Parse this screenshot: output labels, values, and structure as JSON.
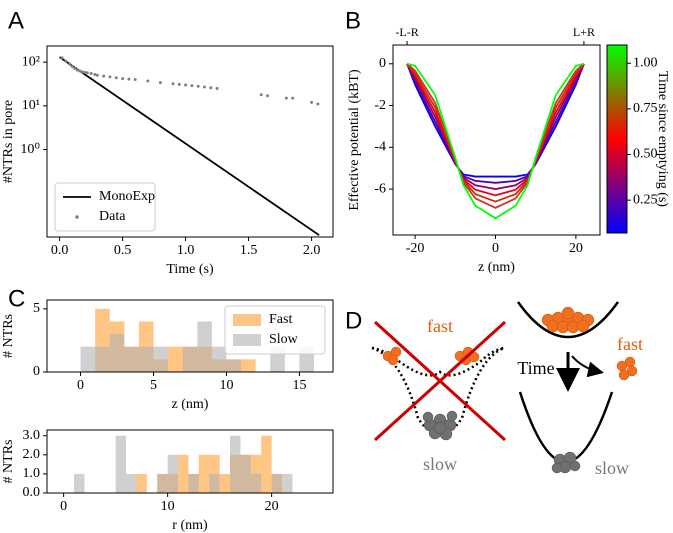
{
  "chart_data": [
    {
      "panel": "A",
      "type": "line",
      "xlabel": "Time (s)",
      "ylabel": "#NTRs in pore",
      "ylog": true,
      "xlim": [
        -0.1,
        2.17
      ],
      "ylim": [
        0.01,
        234
      ],
      "xticks": [
        {
          "value": 0,
          "label": "0.0"
        },
        {
          "value": 0.5,
          "label": "0.5"
        },
        {
          "value": 1,
          "label": "1.0"
        },
        {
          "value": 1.5,
          "label": "1.5"
        },
        {
          "value": 2,
          "label": "2.0"
        }
      ],
      "yticks": [
        {
          "value": 1,
          "label": "10⁰"
        },
        {
          "value": 10,
          "label": "10¹"
        },
        {
          "value": 100,
          "label": "10²"
        }
      ],
      "legend": "lower left",
      "series": [
        {
          "name": "MonoExp",
          "type": "line",
          "color": "#000000",
          "x": [
            0,
            2.06
          ],
          "values": [
            130,
            0.011
          ]
        },
        {
          "name": "Data",
          "type": "scatter",
          "color": "#808080",
          "x": [
            0.02,
            0.05,
            0.08,
            0.1,
            0.12,
            0.14,
            0.16,
            0.18,
            0.2,
            0.22,
            0.25,
            0.28,
            0.3,
            0.35,
            0.4,
            0.45,
            0.5,
            0.55,
            0.6,
            0.7,
            0.8,
            0.9,
            0.95,
            1.0,
            1.05,
            1.1,
            1.15,
            1.2,
            1.25,
            1.6,
            1.65,
            1.8,
            1.85,
            2.0,
            2.05
          ],
          "values": [
            125,
            105,
            90,
            80,
            72,
            66,
            63,
            60,
            58,
            57,
            55,
            52,
            50,
            48,
            46,
            44,
            42,
            41,
            40,
            37,
            34,
            32,
            31,
            30,
            29,
            28,
            27,
            26,
            25,
            18,
            17,
            15,
            15,
            12,
            11
          ]
        }
      ]
    },
    {
      "panel": "B",
      "type": "line",
      "xlabel": "z (nm)",
      "ylabel": "Effective potential (kBT)",
      "xlim": [
        -25.5,
        26
      ],
      "ylim": [
        -8.2,
        0.9
      ],
      "xticks": [
        -20,
        0,
        20
      ],
      "yticks": [
        -6,
        -4,
        -2,
        0
      ],
      "x2ticks": [
        {
          "value": -22,
          "label": "-L-R"
        },
        {
          "value": 22,
          "label": "L+R"
        }
      ],
      "x": [
        -22,
        -20,
        -15,
        -10,
        -8,
        -5,
        0,
        5,
        8,
        10,
        15,
        20,
        22
      ],
      "colorbar": {
        "label": "Time since emptying (s)",
        "lim": [
          0.07,
          1.1
        ],
        "colors": [
          "#0000ff",
          "#ff0000",
          "#00ff00"
        ],
        "ticks": [
          0.25,
          {
            "value": 0.5,
            "label": "0.50"
          },
          0.75,
          {
            "value": 1,
            "label": "1.00"
          }
        ]
      },
      "series": [
        {
          "type": "line",
          "color": "#0000ff",
          "values": [
            0,
            -1.0,
            -3.0,
            -4.8,
            -5.3,
            -5.4,
            -5.4,
            -5.4,
            -5.3,
            -4.8,
            -3.0,
            -1.0,
            0
          ]
        },
        {
          "type": "line",
          "color": "#4d00b2",
          "values": [
            0,
            -0.87,
            -2.78,
            -4.76,
            -5.38,
            -5.61,
            -5.7,
            -5.61,
            -5.38,
            -4.76,
            -2.78,
            -0.87,
            0
          ]
        },
        {
          "type": "line",
          "color": "#990066",
          "values": [
            0,
            -0.73,
            -2.55,
            -4.71,
            -5.45,
            -5.82,
            -6.0,
            -5.82,
            -5.45,
            -4.71,
            -2.55,
            -0.73,
            0
          ]
        },
        {
          "type": "line",
          "color": "#e60019",
          "values": [
            0,
            -0.6,
            -2.33,
            -4.67,
            -5.53,
            -6.03,
            -6.3,
            -6.03,
            -5.53,
            -4.67,
            -2.33,
            -0.6,
            0
          ]
        },
        {
          "type": "line",
          "color": "#cc3300",
          "values": [
            0,
            -0.46,
            -2.1,
            -4.62,
            -5.6,
            -6.24,
            -6.6,
            -6.24,
            -5.6,
            -4.62,
            -2.1,
            -0.46,
            0
          ]
        },
        {
          "type": "line",
          "color": "#cc3333",
          "values": [
            0,
            -0.33,
            -1.88,
            -4.58,
            -5.68,
            -6.45,
            -6.9,
            -6.45,
            -5.68,
            -4.58,
            -1.88,
            -0.33,
            0
          ]
        },
        {
          "type": "line",
          "color": "#00ff00",
          "values": [
            0,
            -0.1,
            -1.5,
            -4.5,
            -5.8,
            -6.8,
            -7.4,
            -6.8,
            -5.8,
            -4.5,
            -1.5,
            -0.1,
            0
          ]
        }
      ]
    },
    {
      "panel": "C",
      "type": "histogram",
      "xlabel": "z (nm)",
      "ylabel": "# NTRs",
      "xlim": [
        -2.3,
        17.3
      ],
      "ylim": [
        0,
        5.7
      ],
      "xticks": [
        0,
        5,
        10,
        15
      ],
      "yticks": [
        0,
        5
      ],
      "legend": "upper right",
      "bins": [
        0,
        1,
        2,
        3,
        4,
        5,
        6,
        7,
        8,
        9,
        10,
        11,
        12,
        13,
        14,
        15,
        16
      ],
      "series": [
        {
          "name": "Fast",
          "color": "#ff9f33",
          "values": [
            0,
            5,
            4,
            2,
            4,
            1,
            2,
            2,
            2,
            1,
            1,
            1,
            0,
            0,
            0,
            0
          ]
        },
        {
          "name": "Slow",
          "color": "#b0b0b0",
          "values": [
            2,
            2,
            3,
            2,
            2,
            2,
            0,
            2,
            4,
            2,
            1,
            0,
            0,
            2,
            0,
            2
          ]
        }
      ]
    },
    {
      "type": "histogram",
      "xlabel": "r (nm)",
      "ylabel": "# NTRs",
      "xlim": [
        -1.6,
        25.9
      ],
      "ylim": [
        0,
        3.3
      ],
      "xticks": [
        0,
        10,
        20
      ],
      "yticks": [
        {
          "value": 0,
          "label": "0.0"
        },
        {
          "value": 1,
          "label": "1.0"
        },
        {
          "value": 2,
          "label": "2.0"
        },
        {
          "value": 3,
          "label": "3.0"
        }
      ],
      "bins": [
        0,
        1,
        2,
        3,
        4,
        5,
        6,
        7,
        8,
        9,
        10,
        11,
        12,
        13,
        14,
        15,
        16,
        17,
        18,
        19,
        20,
        21,
        22
      ],
      "series": [
        {
          "name": "Fast",
          "color": "#ff9f33",
          "values": [
            0,
            0,
            0,
            0,
            0,
            0,
            0,
            1,
            0,
            1,
            1,
            2,
            1,
            2,
            2,
            1,
            2,
            2,
            2,
            3,
            1,
            0
          ]
        },
        {
          "name": "Slow",
          "color": "#b0b0b0",
          "values": [
            0,
            1,
            0,
            0,
            0,
            3,
            1,
            0,
            0,
            1,
            2,
            0,
            1,
            0,
            1,
            0,
            3,
            2,
            1,
            0,
            1,
            1
          ]
        }
      ]
    }
  ],
  "diagram": {
    "panel": "D",
    "left_fast": "fast",
    "left_slow": "slow",
    "time": "Time",
    "right_fast": "fast",
    "right_slow": "slow"
  }
}
